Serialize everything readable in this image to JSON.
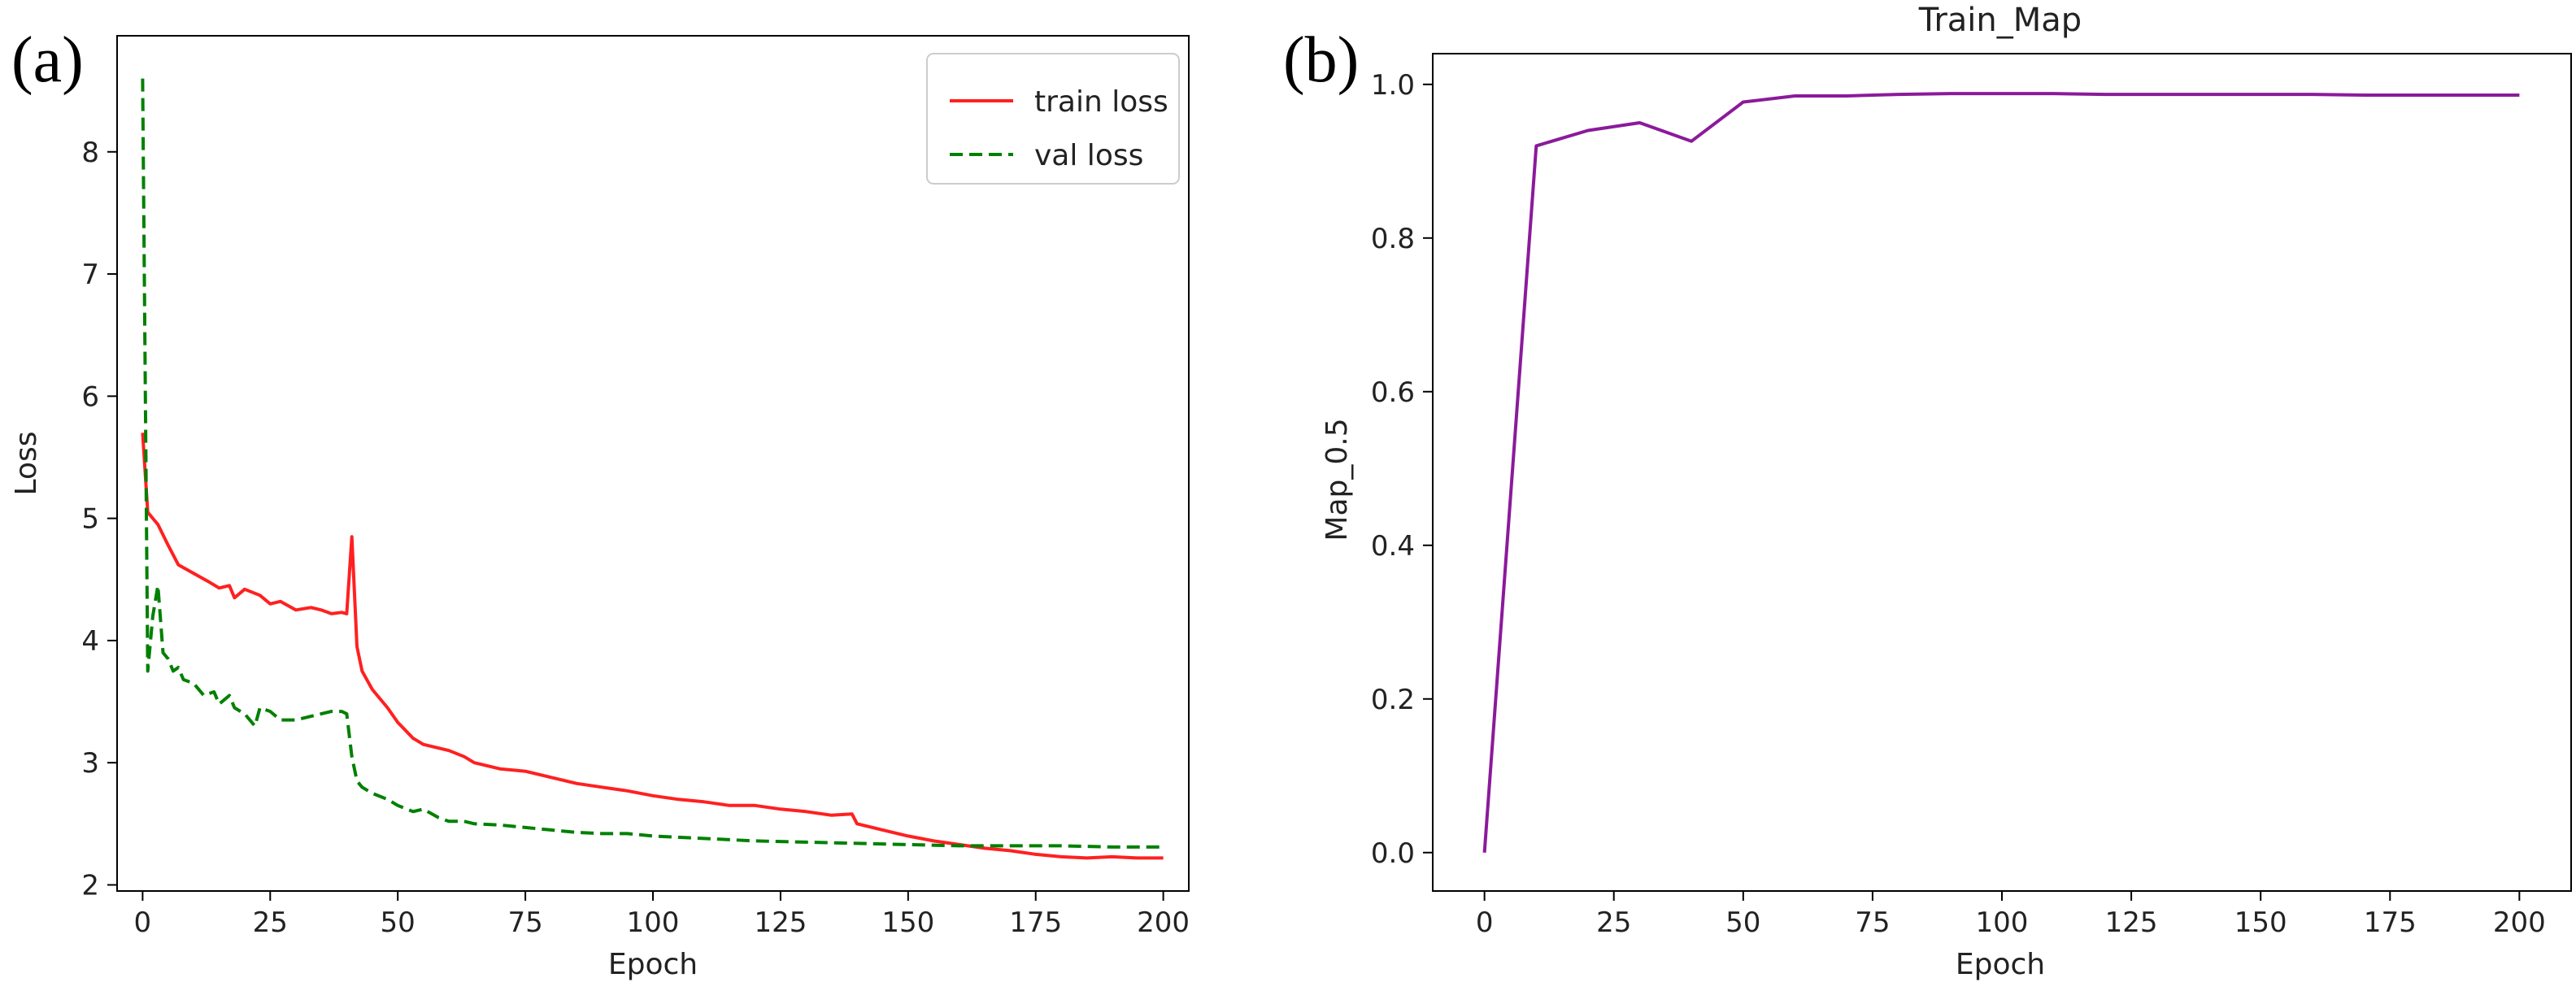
{
  "chart_data": [
    {
      "type": "line",
      "panel_label": "(a)",
      "title": "",
      "xlabel": "Epoch",
      "ylabel": "Loss",
      "xlim": [
        -5,
        205
      ],
      "ylim": [
        1.95,
        8.95
      ],
      "xticks": [
        0,
        25,
        50,
        75,
        100,
        125,
        150,
        175,
        200
      ],
      "yticks": [
        2,
        3,
        4,
        5,
        6,
        7,
        8
      ],
      "legend_position": "top-right",
      "series": [
        {
          "name": "train loss",
          "color": "#ff2020",
          "style": "solid",
          "x": [
            0,
            1,
            2,
            3,
            5,
            7,
            10,
            13,
            15,
            17,
            18,
            20,
            23,
            25,
            27,
            30,
            33,
            35,
            37,
            39,
            40,
            41,
            42,
            43,
            45,
            48,
            50,
            53,
            55,
            60,
            63,
            65,
            70,
            75,
            80,
            85,
            90,
            95,
            100,
            105,
            110,
            115,
            120,
            125,
            130,
            135,
            139,
            140,
            145,
            150,
            155,
            160,
            165,
            170,
            175,
            180,
            185,
            190,
            195,
            200
          ],
          "values": [
            5.7,
            5.05,
            5.0,
            4.95,
            4.78,
            4.62,
            4.55,
            4.48,
            4.43,
            4.45,
            4.35,
            4.42,
            4.37,
            4.3,
            4.32,
            4.25,
            4.27,
            4.25,
            4.22,
            4.23,
            4.22,
            4.85,
            3.95,
            3.75,
            3.6,
            3.45,
            3.33,
            3.2,
            3.15,
            3.1,
            3.05,
            3.0,
            2.95,
            2.93,
            2.88,
            2.83,
            2.8,
            2.77,
            2.73,
            2.7,
            2.68,
            2.65,
            2.65,
            2.62,
            2.6,
            2.57,
            2.58,
            2.5,
            2.45,
            2.4,
            2.36,
            2.33,
            2.3,
            2.28,
            2.25,
            2.23,
            2.22,
            2.23,
            2.22,
            2.22
          ]
        },
        {
          "name": "val loss",
          "color": "#008000",
          "style": "dashed",
          "x": [
            0,
            1,
            2,
            3,
            4,
            5,
            6,
            7,
            8,
            10,
            12,
            14,
            15,
            17,
            18,
            20,
            22,
            23,
            25,
            27,
            30,
            33,
            35,
            37,
            39,
            40,
            41,
            42,
            43,
            45,
            48,
            50,
            53,
            55,
            58,
            60,
            63,
            65,
            70,
            75,
            80,
            85,
            90,
            95,
            100,
            110,
            120,
            130,
            140,
            150,
            160,
            170,
            180,
            190,
            200
          ],
          "values": [
            8.6,
            3.75,
            4.2,
            4.45,
            3.9,
            3.85,
            3.75,
            3.78,
            3.68,
            3.65,
            3.55,
            3.58,
            3.48,
            3.55,
            3.45,
            3.4,
            3.3,
            3.45,
            3.42,
            3.35,
            3.35,
            3.38,
            3.4,
            3.42,
            3.42,
            3.4,
            3.05,
            2.85,
            2.8,
            2.75,
            2.7,
            2.65,
            2.6,
            2.62,
            2.55,
            2.52,
            2.52,
            2.5,
            2.49,
            2.47,
            2.45,
            2.43,
            2.42,
            2.42,
            2.4,
            2.38,
            2.36,
            2.35,
            2.34,
            2.33,
            2.32,
            2.32,
            2.32,
            2.31,
            2.31
          ]
        }
      ]
    },
    {
      "type": "line",
      "panel_label": "(b)",
      "title": "Train_Map",
      "xlabel": "Epoch",
      "ylabel": "Map_0.5",
      "xlim": [
        -10,
        210
      ],
      "ylim": [
        -0.05,
        1.04
      ],
      "xticks": [
        0,
        25,
        50,
        75,
        100,
        125,
        150,
        175,
        200
      ],
      "yticks": [
        "0.0",
        "0.2",
        "0.4",
        "0.6",
        "0.8",
        "1.0"
      ],
      "series": [
        {
          "name": "map_0.5",
          "color": "#8b1a9b",
          "style": "solid",
          "x": [
            0,
            10,
            20,
            30,
            40,
            50,
            60,
            70,
            80,
            90,
            100,
            110,
            120,
            130,
            140,
            150,
            160,
            170,
            180,
            190,
            200
          ],
          "values": [
            0.0,
            0.92,
            0.94,
            0.95,
            0.926,
            0.977,
            0.985,
            0.985,
            0.987,
            0.988,
            0.988,
            0.988,
            0.987,
            0.987,
            0.987,
            0.987,
            0.987,
            0.986,
            0.986,
            0.986,
            0.986
          ]
        }
      ]
    }
  ]
}
